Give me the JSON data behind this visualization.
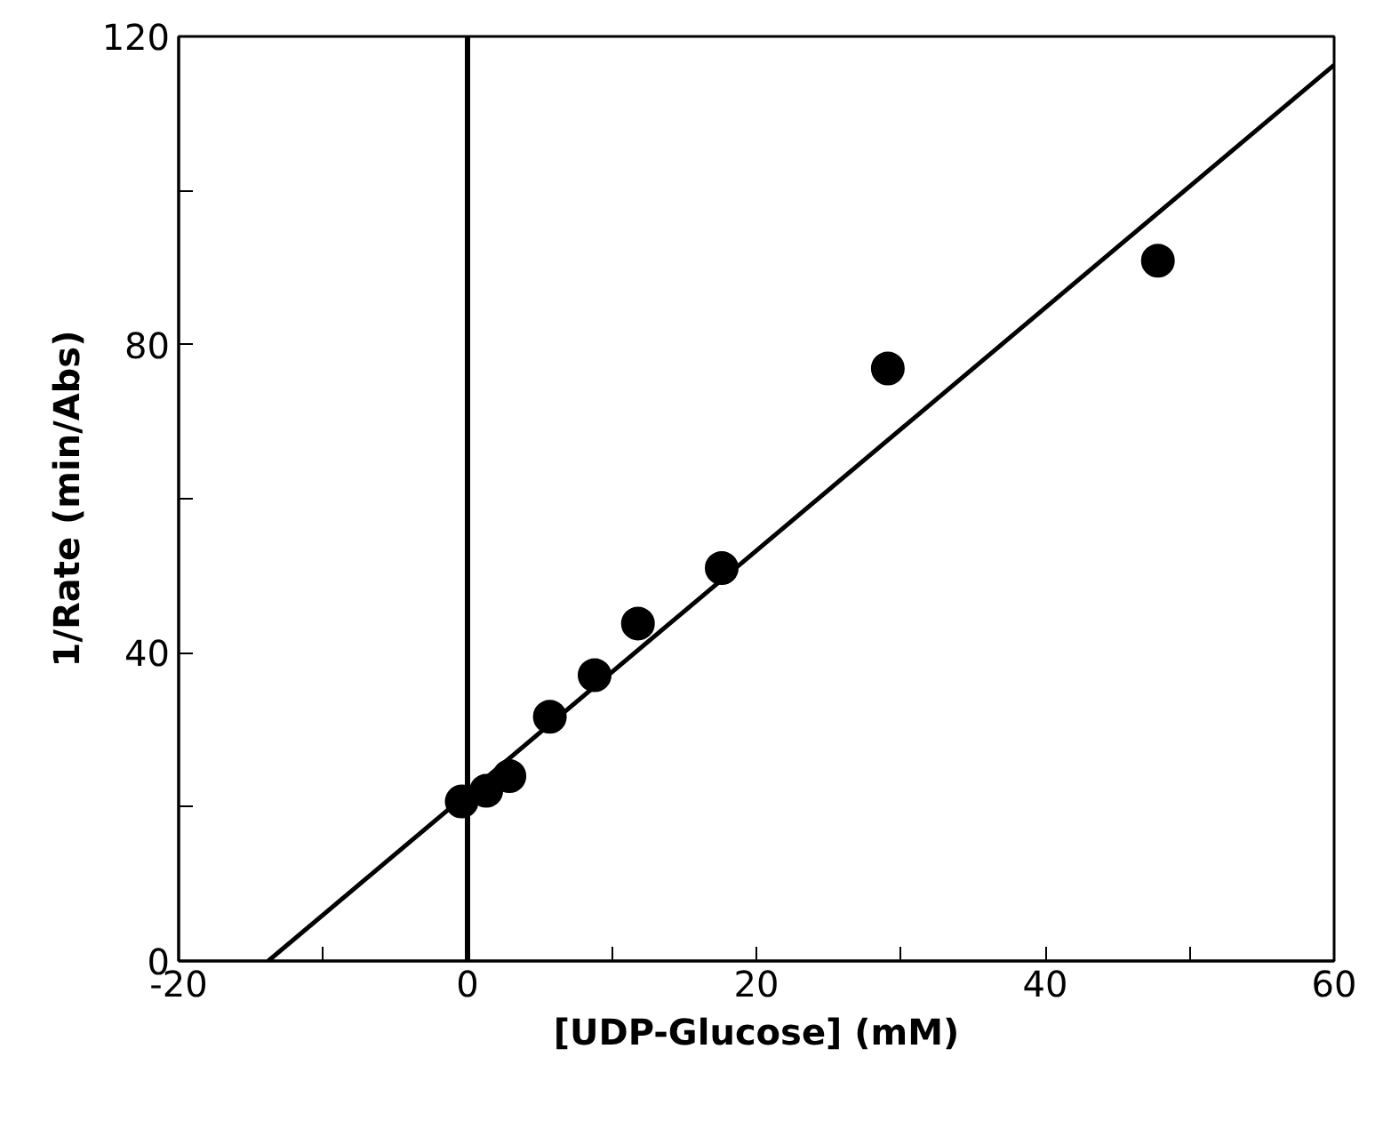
{
  "chart_data": {
    "type": "scatter",
    "xlabel": "[UDP-Glucose] (mM)",
    "ylabel": "1/Rate (min/Abs)",
    "xlim": [
      -20,
      60
    ],
    "ylim": [
      0,
      120
    ],
    "xticks": [
      -20,
      {
        "value": -10,
        "label": null
      },
      0,
      {
        "value": 10,
        "label": null
      },
      20,
      {
        "value": 30,
        "label": null
      },
      40,
      {
        "value": 50,
        "label": null
      },
      60
    ],
    "yticks": [
      0,
      {
        "value": 20,
        "label": null
      },
      40,
      {
        "value": 60,
        "label": null
      },
      80,
      {
        "value": 100,
        "label": null
      },
      120
    ],
    "grid": false,
    "marker": "circle",
    "ref_lines": [
      {
        "axis": "x",
        "value": 0,
        "color": "#000000"
      }
    ],
    "series": [
      {
        "color": "#000000",
        "x": [
          -0.4,
          1.3,
          2.9,
          5.7,
          8.8,
          11.8,
          17.6,
          29.1,
          47.8
        ],
        "values": [
          20.7,
          22.1,
          24,
          31.7,
          37.1,
          43.8,
          51,
          76.9,
          90.9
        ]
      },
      {
        "type": "line",
        "color": "#000000",
        "x": [
          -13.8,
          60
        ],
        "values": [
          0,
          116.3
        ],
        "marker": "none",
        "line_style": "solid"
      }
    ]
  }
}
